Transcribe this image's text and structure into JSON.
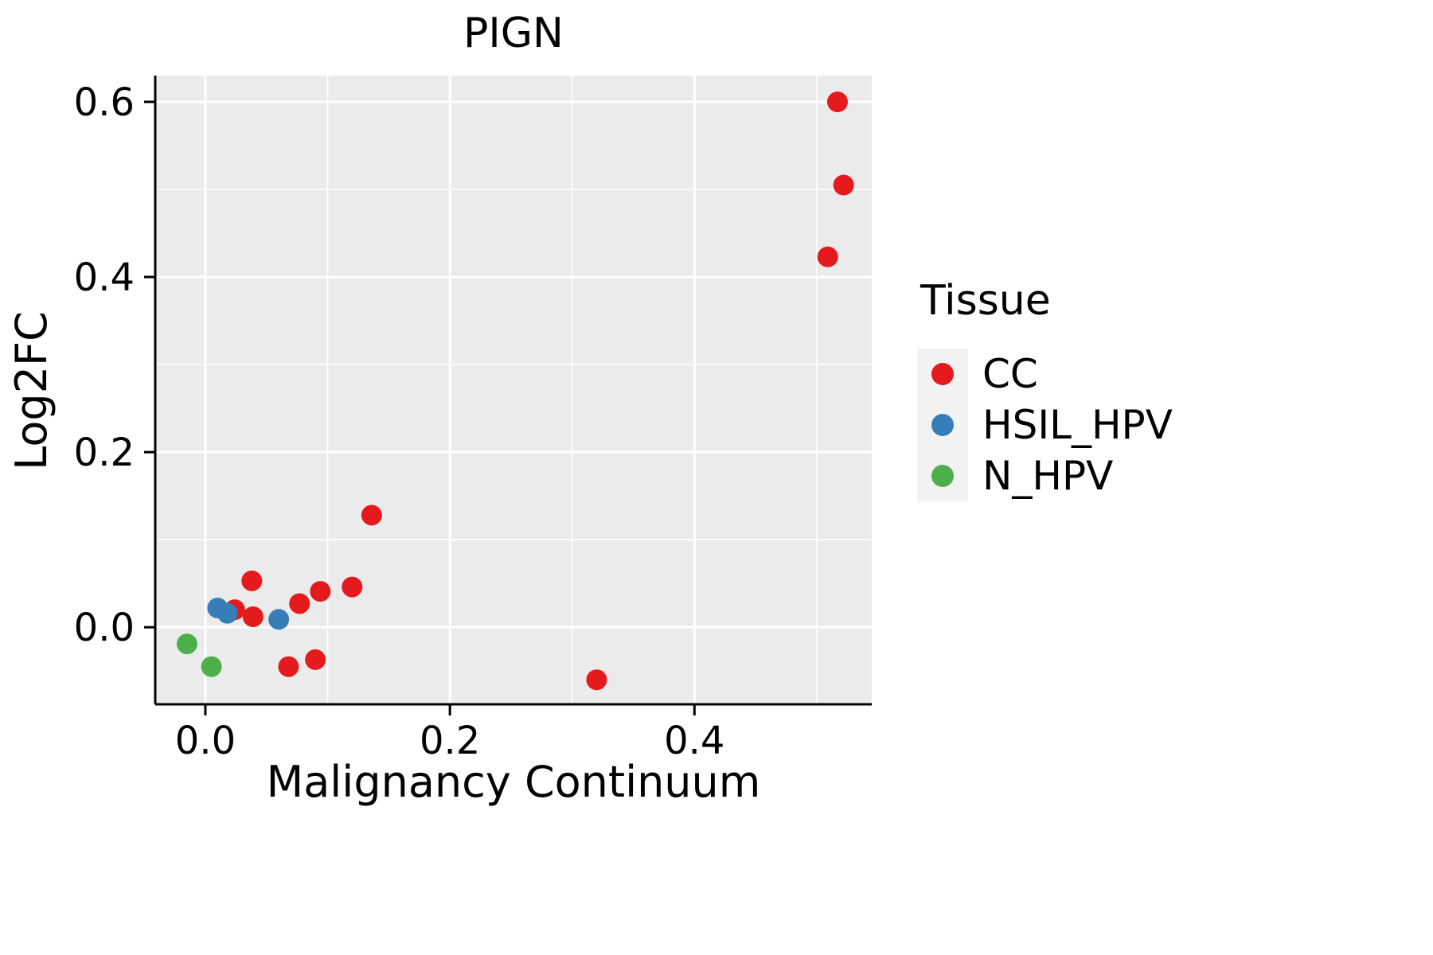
{
  "chart_data": {
    "type": "scatter",
    "title": "PIGN",
    "xlabel": "Malignancy Continuum",
    "ylabel": "Log2FC",
    "legend_title": "Tissue",
    "panel_color": "#EBEBEB",
    "grid_color": "#FFFFFF",
    "axis_color": "#000000",
    "legend_key_color": "#F2F2F2",
    "xlim": [
      -0.041,
      0.545
    ],
    "ylim": [
      -0.088,
      0.63
    ],
    "x_ticks": [
      0,
      0.2,
      0.4
    ],
    "x_tick_labels": [
      "0.0",
      "0.2",
      "0.4"
    ],
    "y_ticks": [
      0,
      0.2,
      0.4,
      0.6
    ],
    "y_tick_labels": [
      "0.0",
      "0.2",
      "0.4",
      "0.6"
    ],
    "x_minor_ticks": [
      0.1,
      0.3,
      0.5
    ],
    "y_minor_ticks": [
      0.1,
      0.3,
      0.5
    ],
    "point_radius": 13,
    "series": [
      {
        "name": "CC",
        "color": "#E41A1C",
        "points": [
          [
            0.517,
            0.6
          ],
          [
            0.522,
            0.505
          ],
          [
            0.509,
            0.423
          ],
          [
            0.136,
            0.128
          ],
          [
            0.038,
            0.053
          ],
          [
            0.024,
            0.02
          ],
          [
            0.039,
            0.012
          ],
          [
            0.077,
            0.027
          ],
          [
            0.094,
            0.041
          ],
          [
            0.12,
            0.046
          ],
          [
            0.068,
            -0.045
          ],
          [
            0.09,
            -0.037
          ],
          [
            0.32,
            -0.06
          ]
        ]
      },
      {
        "name": "HSIL_HPV",
        "color": "#377EB8",
        "points": [
          [
            0.01,
            0.022
          ],
          [
            0.018,
            0.016
          ],
          [
            0.06,
            0.009
          ]
        ]
      },
      {
        "name": "N_HPV",
        "color": "#4DAF4A",
        "points": [
          [
            -0.015,
            -0.019
          ],
          [
            0.005,
            -0.045
          ]
        ]
      }
    ]
  }
}
